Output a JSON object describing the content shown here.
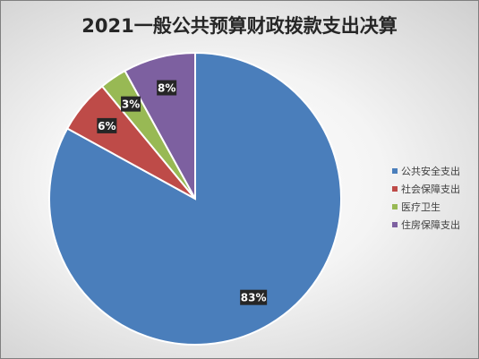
{
  "chart_data": {
    "type": "pie",
    "title": "2021一般公共预算财政拨款支出决算",
    "categories": [
      "公共安全支出",
      "社会保障支出",
      "医疗卫生",
      "住房保障支出"
    ],
    "values": [
      83,
      6,
      3,
      8
    ],
    "data_labels": [
      "83%",
      "6%",
      "3%",
      "8%"
    ],
    "colors": [
      "#4a7ebb",
      "#be4b48",
      "#98b954",
      "#7d60a0"
    ],
    "legend_position": "right"
  }
}
